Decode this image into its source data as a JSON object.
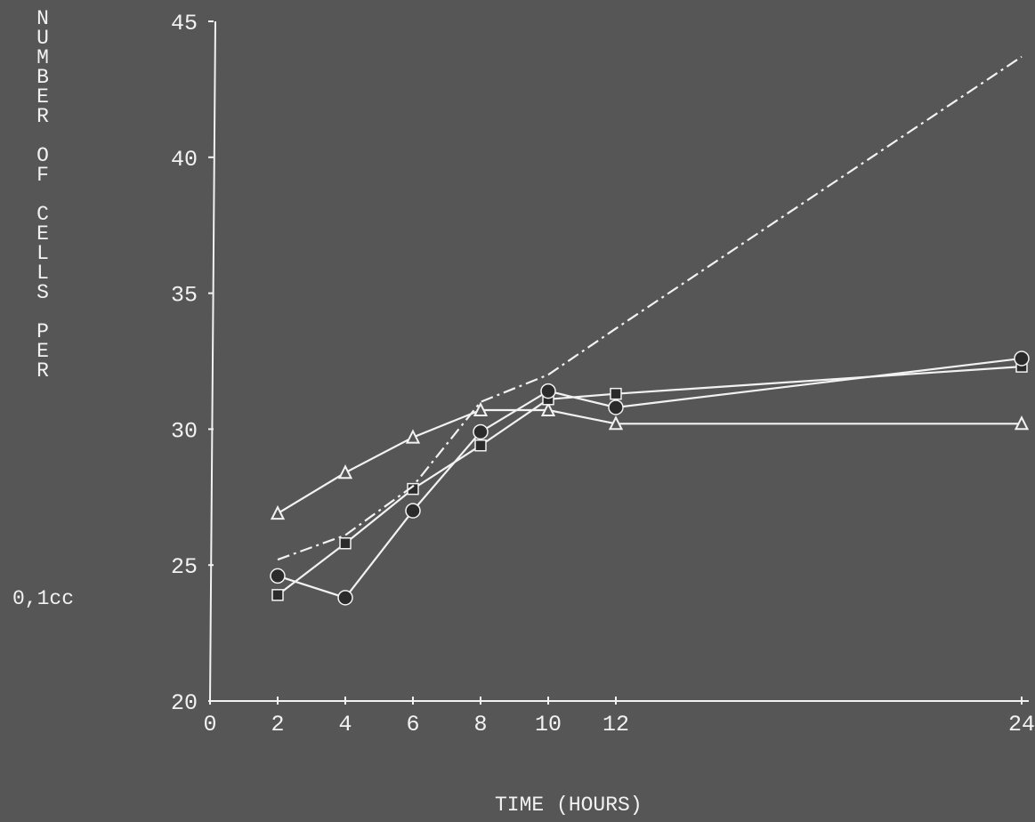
{
  "chart_data": {
    "type": "line",
    "title": "",
    "ylabel_lines": [
      "NUMBER",
      "OF",
      "CELLS",
      "PER"
    ],
    "ylabel_unit": "0,1cc",
    "xlabel": "TIME (HOURS)",
    "x_ticks": [
      0,
      2,
      4,
      6,
      8,
      10,
      12,
      24
    ],
    "y_ticks": [
      20,
      25,
      30,
      35,
      40,
      45
    ],
    "xlim": [
      0,
      24
    ],
    "ylim": [
      20,
      45
    ],
    "grid": false,
    "series": [
      {
        "marker": "triangle-open",
        "line": "solid",
        "x": [
          2,
          4,
          6,
          8,
          10,
          12,
          24
        ],
        "y": [
          26.9,
          28.4,
          29.7,
          30.7,
          30.7,
          30.2,
          30.2
        ]
      },
      {
        "marker": "square-filled",
        "line": "solid",
        "x": [
          2,
          4,
          6,
          8,
          10,
          12,
          24
        ],
        "y": [
          23.9,
          25.8,
          27.8,
          29.4,
          31.1,
          31.3,
          32.3
        ]
      },
      {
        "marker": "circle-filled",
        "line": "solid",
        "x": [
          2,
          4,
          6,
          8,
          10,
          12,
          24
        ],
        "y": [
          24.6,
          23.8,
          27.0,
          29.9,
          31.4,
          30.8,
          32.6
        ]
      },
      {
        "marker": "none",
        "line": "dash-dot",
        "x": [
          2,
          4,
          6,
          8,
          10,
          12,
          24
        ],
        "y": [
          25.2,
          26.1,
          27.9,
          31.0,
          32.0,
          33.7,
          43.7
        ]
      }
    ]
  }
}
